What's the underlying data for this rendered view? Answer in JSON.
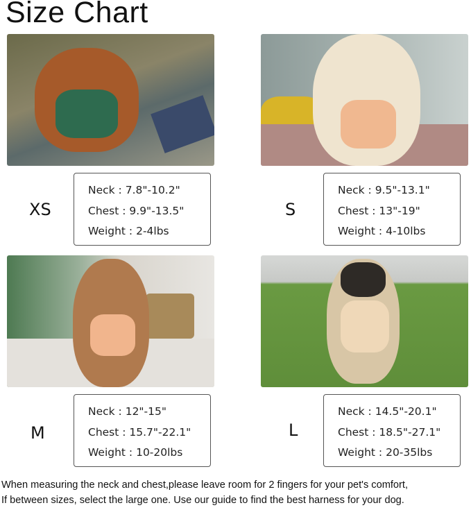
{
  "title": "Size Chart",
  "sizes": [
    {
      "label": "XS",
      "neck": "Neck : 7.8\"-10.2\"",
      "chest": "Chest : 9.9\"-13.5\"",
      "weight": "Weight : 2-4lbs"
    },
    {
      "label": "S",
      "neck": "Neck : 9.5\"-13.1\"",
      "chest": "Chest : 13\"-19\"",
      "weight": "Weight : 4-10lbs"
    },
    {
      "label": "M",
      "neck": "Neck : 12\"-15\"",
      "chest": "Chest : 15.7\"-22.1\"",
      "weight": "Weight : 10-20lbs"
    },
    {
      "label": "L",
      "neck": "Neck : 14.5\"-20.1\"",
      "chest": "Chest : 18.5\"-27.1\"",
      "weight": "Weight : 20-35lbs"
    }
  ],
  "notes": [
    "When measuring the neck and chest,please leave room for 2 fingers for your pet's comfort,",
    "If between sizes, select the large one. Use our guide to find the best harness for your dog."
  ]
}
